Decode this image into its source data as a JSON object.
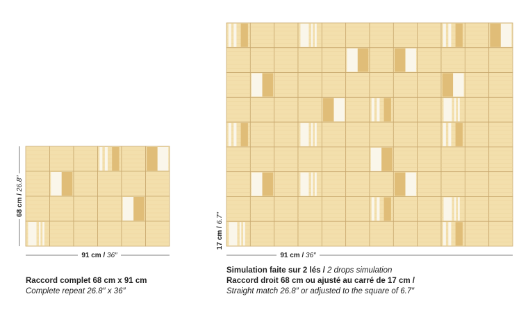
{
  "sample": {
    "height_label": {
      "metric": "68 cm /",
      "imperial": "26.8″"
    },
    "width_label": {
      "metric": "91 cm /",
      "imperial": "36″"
    },
    "caption": {
      "line1": "Raccord complet 68 cm x 91 cm",
      "line2": "Complete repeat 26.8″ x 36″"
    }
  },
  "simulation": {
    "height_label": {
      "metric": "17 cm /",
      "imperial": "6.7″"
    },
    "width_label": {
      "metric": "91 cm /",
      "imperial": "36″"
    },
    "caption": {
      "line1_bold": "Simulation faite sur 2 lés /",
      "line1_italic": "2 drops simulation",
      "line2": "Raccord droit 68 cm ou ajusté au carré de 17 cm /",
      "line3": "Straight match 26.8″ or adjusted to the square of 6.7″"
    }
  }
}
